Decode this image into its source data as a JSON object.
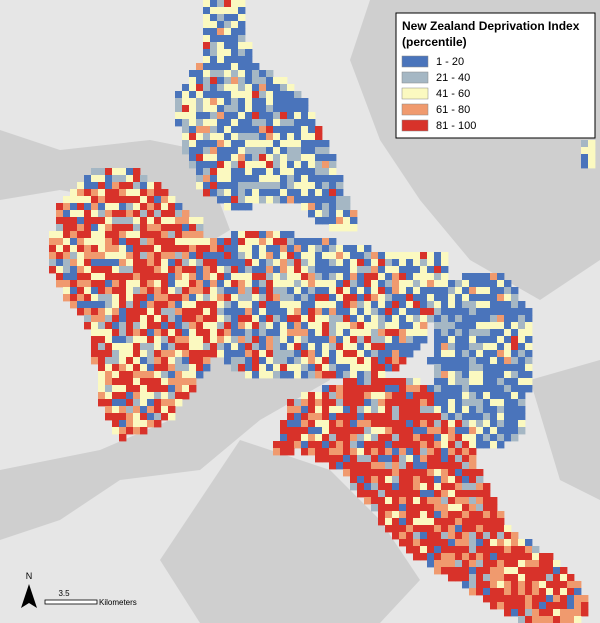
{
  "legend": {
    "title_lines": [
      "New Zealand Deprivation Index",
      "(percentile)"
    ],
    "items": [
      {
        "label": "1 - 20",
        "color": "#4a74bb"
      },
      {
        "label": "21 - 40",
        "color": "#a5b7c4"
      },
      {
        "label": "41 - 60",
        "color": "#fbf9c0"
      },
      {
        "label": "61 - 80",
        "color": "#f09a6e"
      },
      {
        "label": "81 - 100",
        "color": "#d8322a"
      }
    ]
  },
  "north_arrow": {
    "label": "N"
  },
  "scale_bar": {
    "distance": "3.5",
    "unit": "Kilometers"
  }
}
